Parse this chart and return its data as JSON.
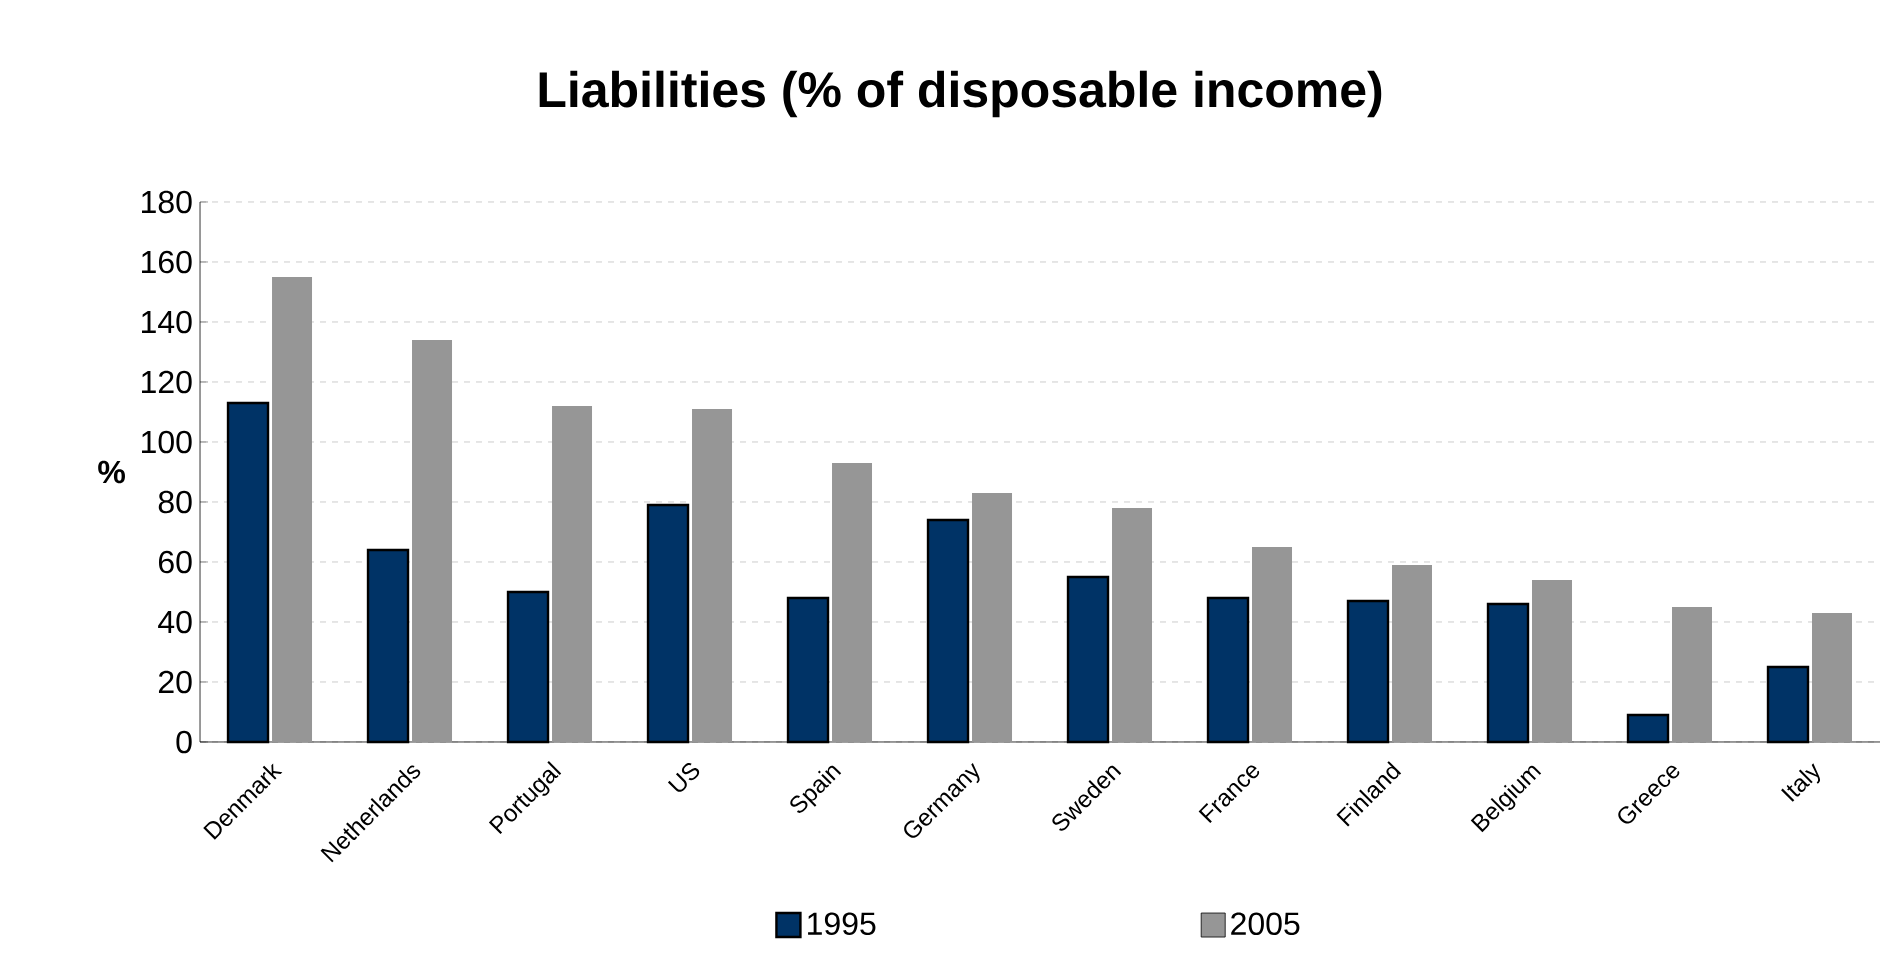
{
  "chart_data": {
    "type": "bar",
    "title": "Liabilities (% of disposable income)",
    "ylabel": "%",
    "categories": [
      "Denmark",
      "Netherlands",
      "Portugal",
      "US",
      "Spain",
      "Germany",
      "Sweden",
      "France",
      "Finland",
      "Belgium",
      "Greece",
      "Italy"
    ],
    "series": [
      {
        "name": "1995",
        "color": "#003366",
        "values": [
          113,
          64,
          50,
          79,
          48,
          74,
          55,
          48,
          47,
          46,
          9,
          25
        ]
      },
      {
        "name": "2005",
        "color": "#969696",
        "values": [
          155,
          134,
          112,
          111,
          93,
          83,
          78,
          65,
          59,
          54,
          45,
          43
        ]
      }
    ],
    "ylim": [
      0,
      180
    ],
    "yticks": [
      0,
      20,
      40,
      60,
      80,
      100,
      120,
      140,
      160,
      180
    ],
    "grid": "y",
    "legend": "bottom"
  }
}
